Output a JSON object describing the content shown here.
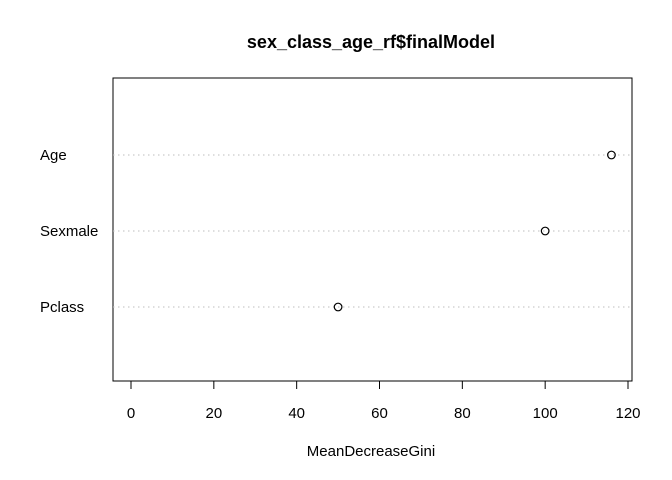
{
  "chart_data": {
    "type": "scatter",
    "title": "sex_class_age_rf$finalModel",
    "xlabel": "MeanDecreaseGini",
    "ylabel": "",
    "categories": [
      "Age",
      "Sexmale",
      "Pclass"
    ],
    "values": [
      116,
      100,
      50
    ],
    "xlim": [
      -5,
      121
    ],
    "xticks": [
      0,
      20,
      40,
      60,
      80,
      100,
      120
    ],
    "grid": "dotted horizontal guide per category",
    "legend": "none",
    "colors": {
      "axis": "#000000",
      "guide": "#bebebe",
      "point": "#000000"
    }
  }
}
